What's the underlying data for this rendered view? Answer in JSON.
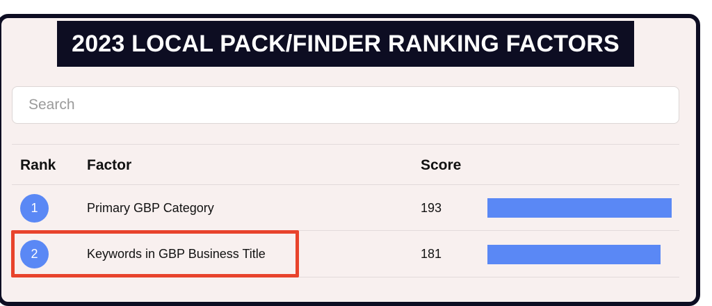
{
  "title": "2023 LOCAL PACK/FINDER RANKING FACTORS",
  "search": {
    "placeholder": "Search",
    "value": ""
  },
  "table": {
    "columns": {
      "rank": "Rank",
      "factor": "Factor",
      "score": "Score"
    },
    "max_score": 193,
    "rows": [
      {
        "rank": "1",
        "factor": "Primary GBP Category",
        "score": "193",
        "bar_fraction": 1.0
      },
      {
        "rank": "2",
        "factor": "Keywords in GBP Business Title",
        "score": "181",
        "bar_fraction": 0.938
      }
    ]
  },
  "colors": {
    "accent": "#5a88f5",
    "banner": "#0d0d22",
    "card_background": "#f8f0ef",
    "highlight": "#e8432c"
  }
}
